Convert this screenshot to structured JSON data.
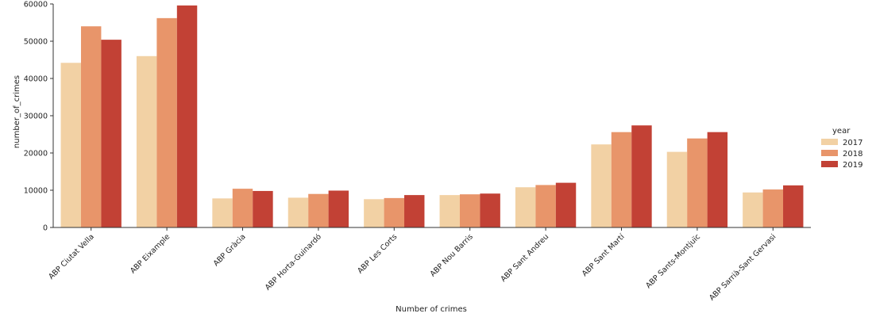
{
  "chart_data": {
    "type": "bar",
    "xlabel": "Number of crimes",
    "ylabel": "number_of_crimes",
    "ylim": [
      0,
      60000
    ],
    "yticks": [
      0,
      10000,
      20000,
      30000,
      40000,
      50000,
      60000
    ],
    "categories": [
      "ABP Ciutat Vella",
      "ABP Eixample",
      "ABP Gràcia",
      "ABP Horta-Guinardó",
      "ABP Les Corts",
      "ABP Nou Barris",
      "ABP Sant Andreu",
      "ABP Sant Martí",
      "ABP Sants-Montjuïc",
      "ABP Sarrià-Sant Gervasi"
    ],
    "legend": {
      "title": "year",
      "placement": "right"
    },
    "grid": false,
    "series": [
      {
        "name": "2017",
        "color": "#f2d1a4",
        "values": [
          44200,
          46000,
          7800,
          8000,
          7600,
          8700,
          10800,
          22300,
          20300,
          9400
        ]
      },
      {
        "name": "2018",
        "color": "#e8956a",
        "values": [
          54000,
          56200,
          10400,
          9000,
          7900,
          8900,
          11400,
          25600,
          23900,
          10200
        ]
      },
      {
        "name": "2019",
        "color": "#c24135",
        "values": [
          50400,
          59600,
          9800,
          9900,
          8700,
          9100,
          12000,
          27400,
          25600,
          11300
        ]
      }
    ]
  }
}
